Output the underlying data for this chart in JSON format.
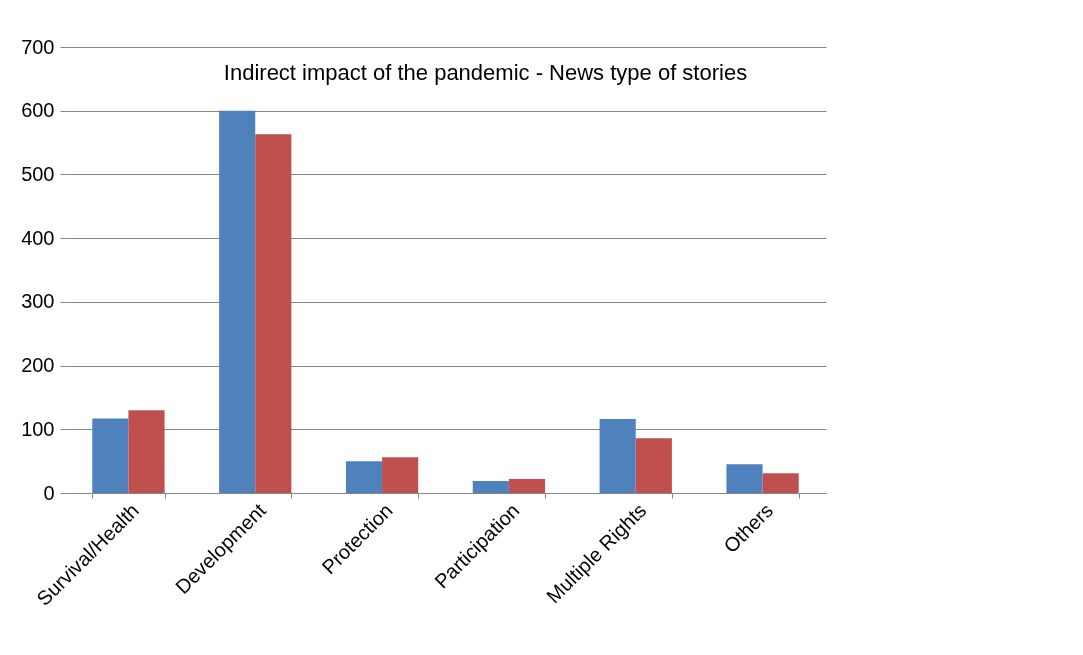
{
  "chart_data": {
    "type": "bar",
    "title": "Indirect impact of the pandemic - News type of stories",
    "categories": [
      "Survival/Health",
      "Development",
      "Protection",
      "Participation",
      "Multiple Rights",
      "Others"
    ],
    "series": [
      {
        "color": "#4f81bd",
        "values": [
          117,
          600,
          50,
          19,
          116,
          45
        ]
      },
      {
        "color": "#c0504d",
        "values": [
          130,
          563,
          56,
          22,
          86,
          31
        ]
      }
    ],
    "ylim": [
      0,
      700
    ],
    "yticks": [
      0,
      100,
      200,
      300,
      400,
      500,
      600,
      700
    ],
    "grid": "y"
  }
}
